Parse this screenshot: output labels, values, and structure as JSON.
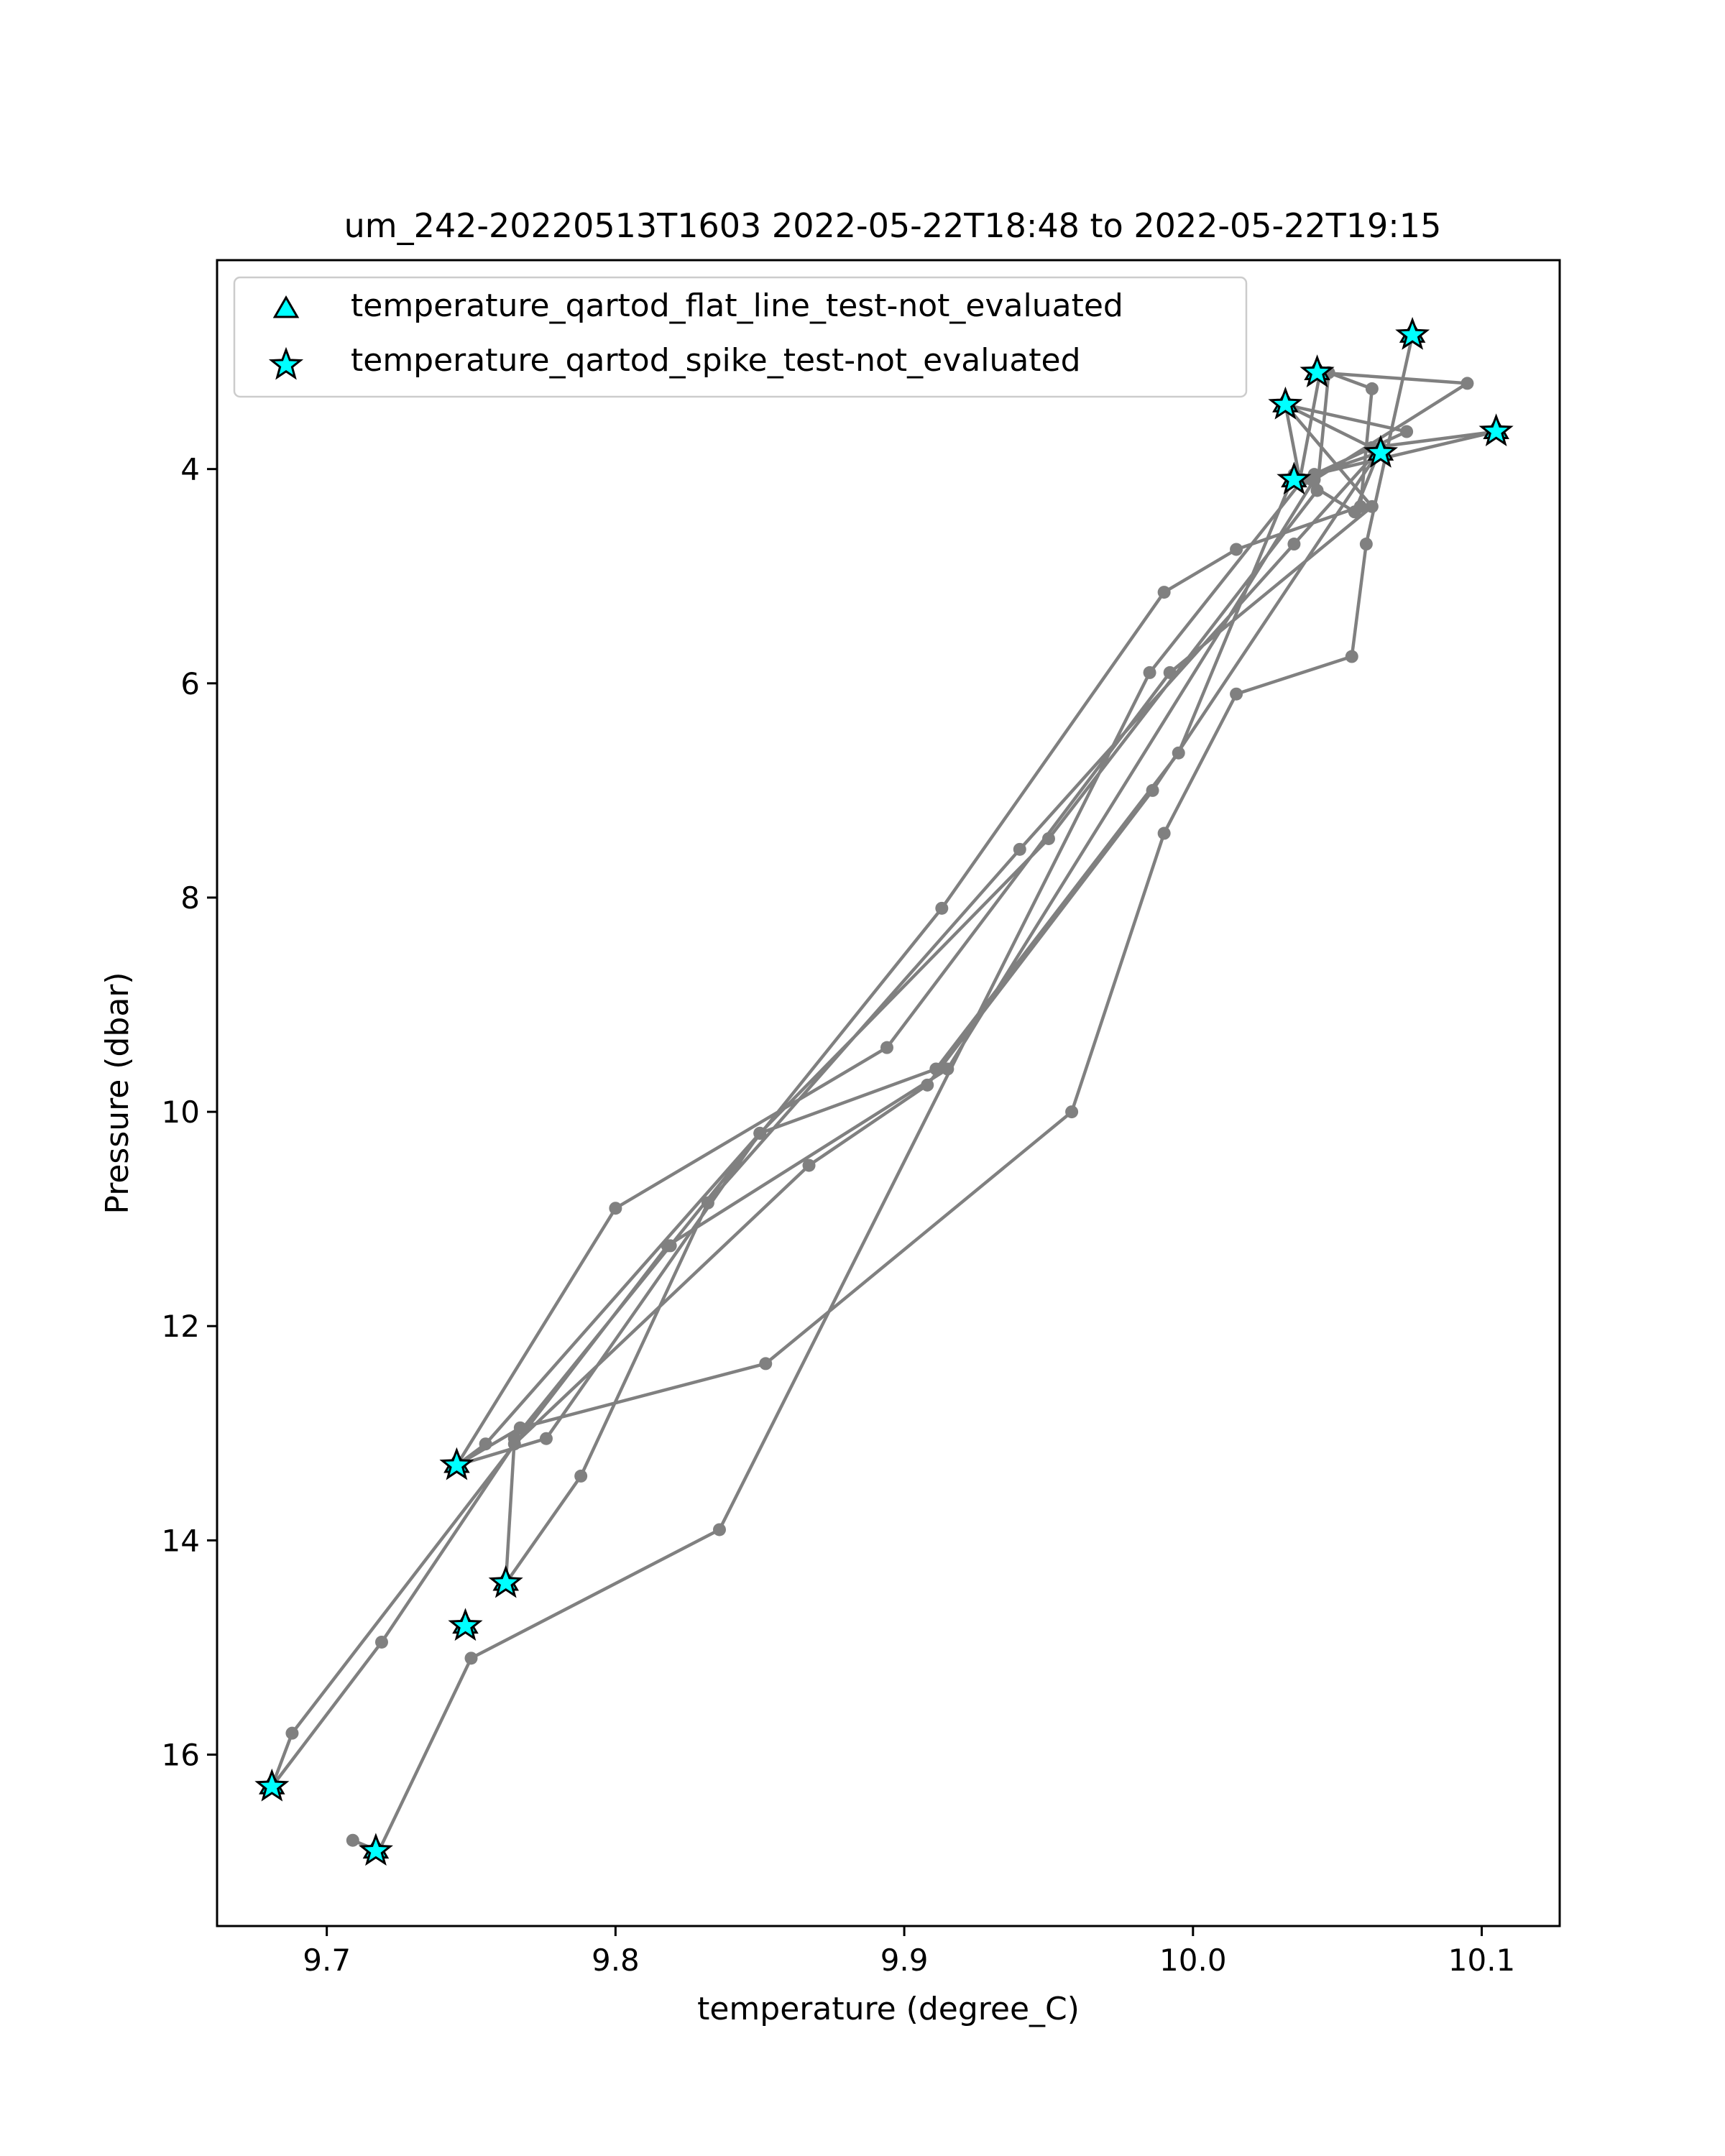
{
  "chart_data": {
    "type": "line",
    "title": "um_242-20220513T1603 2022-05-22T18:48 to 2022-05-22T19:15",
    "xlabel": "temperature (degree_C)",
    "ylabel": "Pressure (dbar)",
    "xlim": [
      9.662,
      10.127
    ],
    "ylim": [
      17.6,
      2.05
    ],
    "y_inverted": true,
    "grid": false,
    "legend_position": "top-left",
    "x_ticks": [
      9.7,
      9.8,
      9.9,
      10.0,
      10.1
    ],
    "x_tick_labels": [
      "9.7",
      "9.8",
      "9.9",
      "10.0",
      "10.1"
    ],
    "y_ticks": [
      4,
      6,
      8,
      10,
      12,
      14,
      16
    ],
    "y_tick_labels": [
      "4",
      "6",
      "8",
      "10",
      "12",
      "14",
      "16"
    ],
    "colors": {
      "profile_line": "#808080",
      "marker_fill": "#00ffff",
      "marker_edge": "#000000"
    },
    "profile": {
      "x": [
        10.076,
        10.06,
        10.055,
        10.015,
        9.99,
        9.958,
        9.852,
        9.767,
        9.745,
        9.755,
        9.85,
        9.95,
        10.043,
        10.047,
        10.062,
        10.058,
        10.015,
        9.99,
        9.913,
        9.819,
        9.765,
        9.762,
        9.788,
        9.832,
        9.94,
        10.035,
        10.065,
        10.056,
        10.035,
        9.995,
        9.911,
        9.85,
        9.776,
        9.745,
        9.8,
        9.894,
        9.992,
        10.062,
        10.032,
        10.062,
        10.105,
        10.042,
        10.064,
        9.986,
        9.908,
        9.867,
        9.765,
        9.719,
        9.681,
        9.688,
        9.818,
        9.915,
        10.042,
        10.095,
        10.044,
        10.037,
        10.032,
        10.074,
        10.038,
        9.985,
        9.836,
        9.75,
        9.718,
        9.709
      ],
      "y": [
        2.75,
        4.7,
        5.75,
        6.1,
        7.4,
        10.0,
        12.35,
        12.95,
        13.3,
        13.1,
        10.2,
        7.45,
        4.2,
        3.1,
        3.25,
        4.35,
        4.75,
        5.15,
        8.1,
        11.25,
        13.05,
        14.4,
        13.4,
        10.85,
        7.55,
        4.7,
        3.8,
        4.4,
        4.05,
        6.65,
        9.6,
        10.2,
        13.05,
        13.3,
        10.9,
        9.4,
        5.9,
        4.35,
        3.4,
        3.8,
        3.65,
        4.05,
        3.85,
        7.0,
        9.75,
        10.5,
        13.1,
        14.95,
        16.3,
        15.8,
        11.25,
        9.6,
        4.1,
        3.2,
        3.1,
        4.1,
        3.4,
        3.65,
        4.1,
        5.9,
        13.9,
        15.1,
        16.9,
        16.8
      ]
    },
    "series": [
      {
        "name": "temperature_qartod_flat_line_test-not_evaluated",
        "marker": "triangle",
        "x": [
          10.076,
          10.043,
          10.032,
          10.065,
          10.105,
          10.035,
          9.745,
          9.762,
          9.748,
          9.681,
          9.717
        ],
        "y": [
          2.75,
          3.1,
          3.4,
          3.85,
          3.65,
          4.1,
          13.3,
          14.4,
          14.8,
          16.3,
          16.9
        ]
      },
      {
        "name": "temperature_qartod_spike_test-not_evaluated",
        "marker": "star",
        "x": [
          10.076,
          10.043,
          10.032,
          10.065,
          10.105,
          10.035,
          9.745,
          9.762,
          9.748,
          9.681,
          9.717
        ],
        "y": [
          2.75,
          3.1,
          3.4,
          3.85,
          3.65,
          4.1,
          13.3,
          14.4,
          14.8,
          16.3,
          16.9
        ]
      }
    ]
  }
}
